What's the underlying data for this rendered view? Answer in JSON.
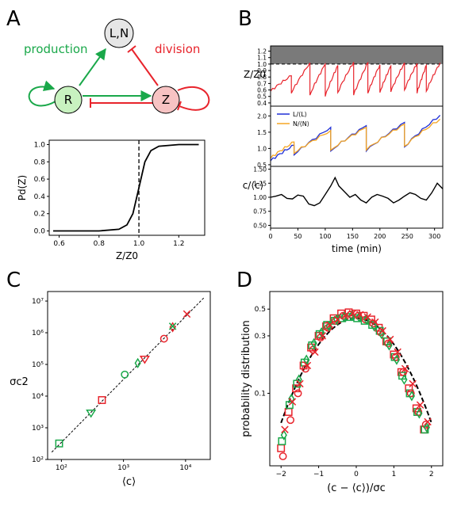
{
  "panels": {
    "a": "A",
    "b": "B",
    "c": "C",
    "d": "D"
  },
  "colors": {
    "green": "#1aa84a",
    "red": "#e8242c",
    "blue": "#1f2fd6",
    "orange": "#f5a623",
    "node_green": "#c8f2c0",
    "node_red": "#f7c3c3",
    "node_gray": "#e6e6e6"
  },
  "diagram": {
    "node_ln": "L,N",
    "node_r": "R",
    "node_z": "Z",
    "label_production": "production",
    "label_division": "division"
  },
  "chart_data": [
    {
      "id": "A-sigmoid",
      "type": "line",
      "xlabel": "Z/Z0",
      "ylabel": "Pd(Z)",
      "xlim": [
        0.55,
        1.33
      ],
      "ylim": [
        -0.05,
        1.05
      ],
      "xticks": [
        "0.6",
        "0.8",
        "1.0",
        "1.2"
      ],
      "yticks": [
        "0.0",
        "0.2",
        "0.4",
        "0.6",
        "0.8",
        "1.0"
      ],
      "threshold_x": 1.0,
      "x": [
        0.57,
        0.8,
        0.9,
        0.94,
        0.97,
        1.0,
        1.03,
        1.06,
        1.1,
        1.2,
        1.3
      ],
      "y": [
        0.0,
        0.0,
        0.02,
        0.07,
        0.2,
        0.5,
        0.8,
        0.93,
        0.98,
        1.0,
        1.0
      ]
    },
    {
      "id": "B-timeseries",
      "type": "line",
      "xlabel": "time (min)",
      "xlim": [
        0,
        315
      ],
      "xticks": [
        "0",
        "50",
        "100",
        "150",
        "200",
        "250",
        "300"
      ],
      "top": {
        "ylabel": "Z/Z0",
        "ylim": [
          0.35,
          1.28
        ],
        "yticks": [
          "0.4",
          "0.5",
          "0.6",
          "0.7",
          "0.8",
          "0.9",
          "1.0",
          "1.1",
          "1.2"
        ],
        "shaded_above": 1.0,
        "division_times": [
          0,
          38,
          72,
          100,
          123,
          152,
          178,
          200,
          220,
          245,
          268,
          285,
          310
        ],
        "start_values": [
          0.58,
          0.55,
          0.52,
          0.5,
          0.56,
          0.52,
          0.55,
          0.56,
          0.57,
          0.6,
          0.55,
          0.58,
          0.55
        ],
        "peak_values": [
          0.82,
          1.02,
          1.0,
          0.98,
          1.03,
          1.02,
          0.99,
          0.97,
          1.02,
          1.01,
          0.98,
          1.02,
          0.98
        ]
      },
      "middle": {
        "ylim": [
          0.45,
          2.3
        ],
        "yticks": [
          "0.5",
          "1.0",
          "1.5",
          "2.0"
        ],
        "series": [
          {
            "name": "L/⟨L⟩",
            "color": "#1f2fd6",
            "division_times": [
              0,
              43,
              110,
              175,
              245,
              310
            ],
            "start_values": [
              0.62,
              0.8,
              0.92,
              0.92,
              1.05,
              1.0
            ],
            "peak_values": [
              1.1,
              1.65,
              1.7,
              1.8,
              2.02,
              1.9
            ]
          },
          {
            "name": "N/⟨N⟩",
            "color": "#f5a623",
            "division_times": [
              0,
              43,
              110,
              175,
              245,
              310
            ],
            "start_values": [
              0.7,
              0.85,
              0.95,
              0.95,
              1.07,
              1.0
            ],
            "peak_values": [
              1.2,
              1.55,
              1.65,
              1.75,
              1.9,
              1.85
            ]
          }
        ]
      },
      "bottom": {
        "ylabel": "c/⟨c⟩",
        "ylim": [
          0.45,
          1.55
        ],
        "yticks": [
          "0.50",
          "0.75",
          "1.00",
          "1.25",
          "1.50"
        ],
        "x": [
          0,
          10,
          20,
          30,
          40,
          50,
          60,
          70,
          80,
          90,
          100,
          110,
          118,
          125,
          135,
          145,
          155,
          165,
          175,
          185,
          195,
          205,
          215,
          225,
          235,
          245,
          255,
          265,
          275,
          285,
          295,
          305,
          315
        ],
        "y": [
          1.0,
          1.02,
          1.05,
          0.98,
          0.97,
          1.04,
          1.02,
          0.88,
          0.85,
          0.9,
          1.05,
          1.2,
          1.35,
          1.2,
          1.1,
          1.0,
          1.05,
          0.95,
          0.9,
          1.0,
          1.05,
          1.02,
          0.98,
          0.9,
          0.95,
          1.02,
          1.08,
          1.05,
          0.98,
          0.95,
          1.08,
          1.25,
          1.15
        ]
      }
    },
    {
      "id": "C-variance-vs-mean",
      "type": "scatter",
      "xlabel": "⟨c⟩",
      "ylabel": "σc2",
      "log_x": true,
      "log_y": true,
      "xlim": [
        60,
        25000
      ],
      "ylim": [
        100,
        20000000.0
      ],
      "xticks": [
        "10²",
        "10³",
        "10⁴"
      ],
      "yticks": [
        "10²",
        "10³",
        "10⁴",
        "10⁵",
        "10⁶",
        "10⁷"
      ],
      "fit": {
        "x": [
          70,
          20000
        ],
        "y": [
          170,
          13000000.0
        ]
      },
      "points": [
        {
          "x": 92,
          "y": 320,
          "marker": "square",
          "color": "#1aa84a"
        },
        {
          "x": 300,
          "y": 3000,
          "marker": "triangle-down",
          "color": "#1aa84a"
        },
        {
          "x": 450,
          "y": 7500,
          "marker": "square",
          "color": "#e8242c"
        },
        {
          "x": 1050,
          "y": 48000,
          "marker": "circle",
          "color": "#1aa84a"
        },
        {
          "x": 1700,
          "y": 110000,
          "marker": "diamond",
          "color": "#1aa84a"
        },
        {
          "x": 2200,
          "y": 150000,
          "marker": "triangle-down",
          "color": "#e8242c"
        },
        {
          "x": 4500,
          "y": 650000,
          "marker": "circle",
          "color": "#e8242c"
        },
        {
          "x": 6200,
          "y": 1500000,
          "marker": "diamond",
          "color": "#e8242c"
        },
        {
          "x": 6200,
          "y": 1600000,
          "marker": "x",
          "color": "#1aa84a"
        },
        {
          "x": 10500,
          "y": 3900000,
          "marker": "x",
          "color": "#e8242c"
        }
      ]
    },
    {
      "id": "D-distribution",
      "type": "scatter",
      "xlabel": "(c − ⟨c⟩)/σc",
      "ylabel": "probability distribution",
      "log_y": true,
      "xlim": [
        -2.3,
        2.3
      ],
      "ylim": [
        0.025,
        0.7
      ],
      "xticks": [
        "−2",
        "−1",
        "0",
        "1",
        "2"
      ],
      "yticks": [
        "0.1",
        "0.3",
        "0.5"
      ],
      "gaussian_peak": 0.42,
      "bins_x": [
        -1.95,
        -1.75,
        -1.55,
        -1.35,
        -1.15,
        -0.95,
        -0.75,
        -0.55,
        -0.35,
        -0.15,
        0.05,
        0.25,
        0.45,
        0.65,
        0.85,
        1.05,
        1.25,
        1.45,
        1.65,
        1.85
      ],
      "series": [
        {
          "name": "",
          "color": "#e8242c",
          "marker": "square",
          "values": [
            0.035,
            0.07,
            0.11,
            0.17,
            0.24,
            0.3,
            0.36,
            0.42,
            0.46,
            0.47,
            0.46,
            0.44,
            0.41,
            0.35,
            0.27,
            0.21,
            0.15,
            0.11,
            0.075,
            0.05
          ]
        },
        {
          "name": "",
          "color": "#1aa84a",
          "marker": "square",
          "values": [
            0.04,
            0.08,
            0.12,
            0.18,
            0.25,
            0.31,
            0.37,
            0.4,
            0.42,
            0.43,
            0.42,
            0.4,
            0.37,
            0.33,
            0.27,
            0.2,
            0.14,
            0.1,
            0.07,
            0.05
          ]
        },
        {
          "name": "",
          "color": "#e8242c",
          "marker": "circle",
          "values": [
            0.03,
            0.06,
            0.1,
            0.16,
            0.23,
            0.29,
            0.35,
            0.4,
            0.44,
            0.45,
            0.44,
            0.41,
            0.38,
            0.32,
            0.26,
            0.2,
            0.15,
            0.1,
            0.07,
            0.055
          ]
        },
        {
          "name": "",
          "color": "#1aa84a",
          "marker": "diamond",
          "values": [
            0.045,
            0.09,
            0.13,
            0.19,
            0.26,
            0.32,
            0.36,
            0.41,
            0.43,
            0.44,
            0.43,
            0.41,
            0.36,
            0.31,
            0.25,
            0.19,
            0.13,
            0.095,
            0.068,
            0.052
          ]
        },
        {
          "name": "",
          "color": "#e8242c",
          "marker": "x",
          "values": [
            0.05,
            0.085,
            0.12,
            0.17,
            0.22,
            0.3,
            0.37,
            0.41,
            0.44,
            0.46,
            0.45,
            0.43,
            0.39,
            0.33,
            0.28,
            0.22,
            0.16,
            0.12,
            0.08,
            0.058
          ]
        }
      ]
    }
  ]
}
